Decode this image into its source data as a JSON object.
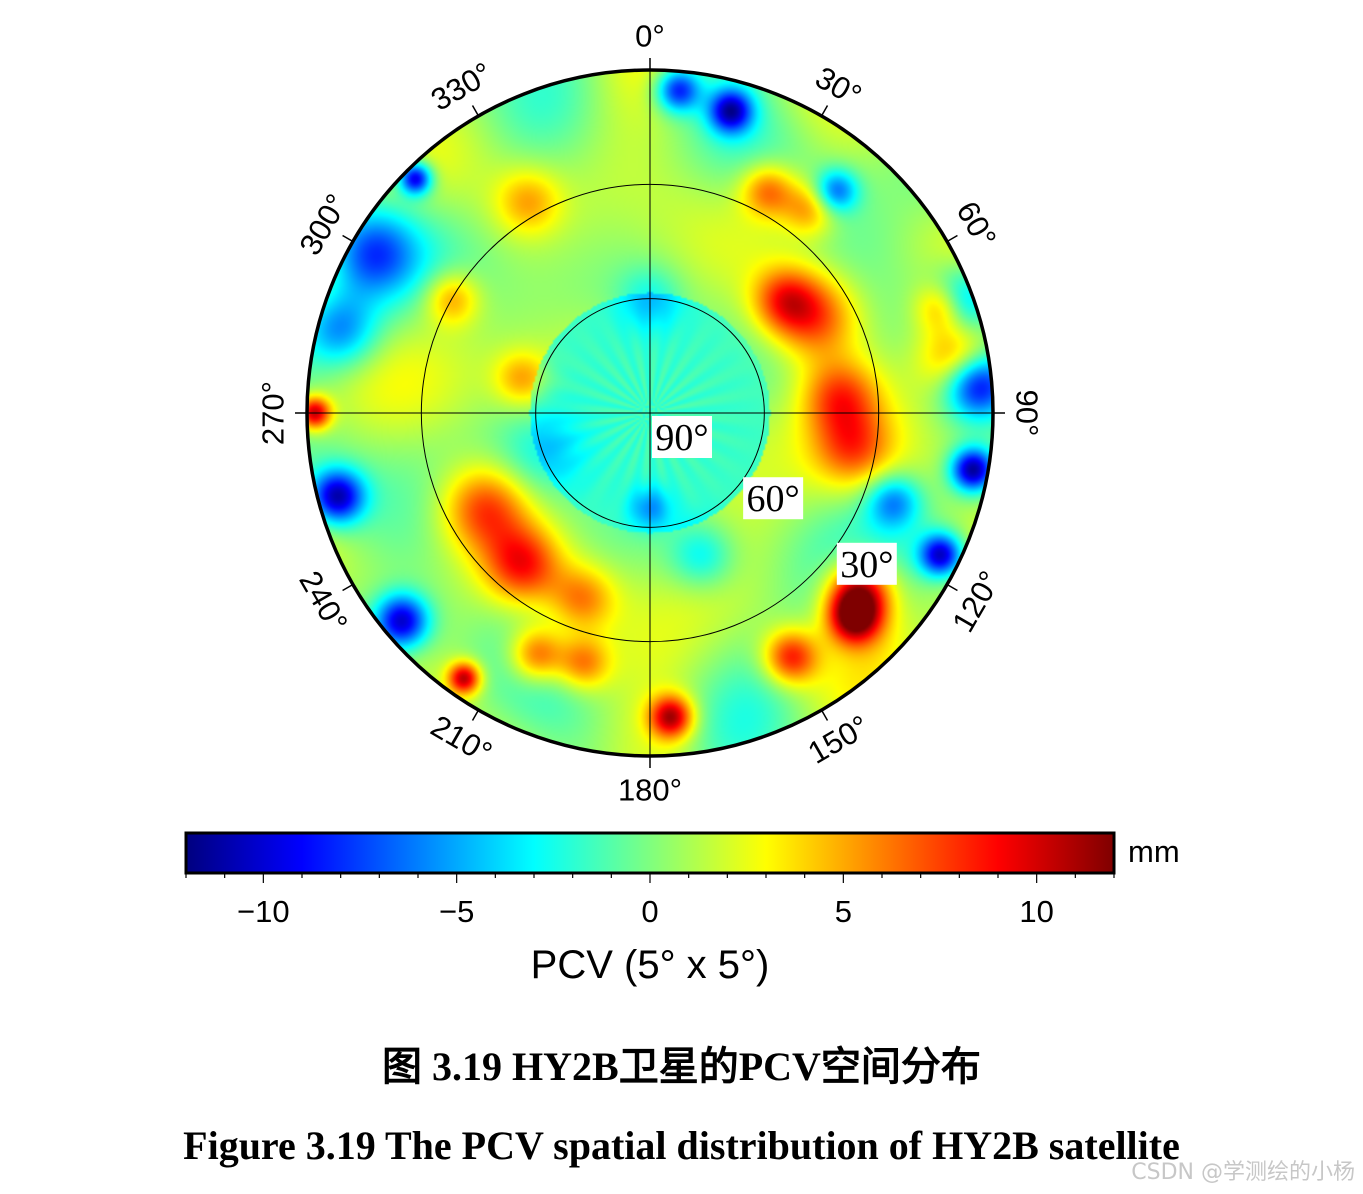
{
  "chart_data": {
    "type": "heatmap",
    "projection": "polar",
    "angular_ticks": [
      "0°",
      "30°",
      "60°",
      "90°",
      "120°",
      "150°",
      "180°",
      "210°",
      "240°",
      "270°",
      "300°",
      "330°"
    ],
    "radial_labels": [
      "90°",
      "60°",
      "30°"
    ],
    "radial_elevations": [
      90,
      60,
      30
    ],
    "elevation_range": [
      0,
      90
    ],
    "grid": true,
    "colorbar": {
      "min": -12,
      "max": 12,
      "ticks": [
        -10,
        -5,
        0,
        5,
        10
      ],
      "tick_labels": [
        "−10",
        "−5",
        "0",
        "5",
        "10"
      ],
      "unit": "mm",
      "label": "PCV (5° x 5°)",
      "colormap": [
        "#00007f",
        "#0000ff",
        "#007fff",
        "#00ffff",
        "#7fff7f",
        "#ffff00",
        "#ff7f00",
        "#ff0000",
        "#7f0000"
      ]
    },
    "features": [
      {
        "azimuth": 80,
        "elevation": 8,
        "value": 7,
        "spread": 7
      },
      {
        "azimuth": 70,
        "elevation": 8,
        "value": 8,
        "spread": 5
      },
      {
        "azimuth": 85,
        "elevation": 4,
        "value": -10,
        "spread": 6
      },
      {
        "azimuth": 70,
        "elevation": 4,
        "value": -9,
        "spread": 6
      },
      {
        "azimuth": 100,
        "elevation": 4,
        "value": -12,
        "spread": 4
      },
      {
        "azimuth": 116,
        "elevation": 5,
        "value": -11,
        "spread": 4
      },
      {
        "azimuth": 135,
        "elevation": 14,
        "value": 11,
        "spread": 5
      },
      {
        "azimuth": 130,
        "elevation": 18,
        "value": 10,
        "spread": 6
      },
      {
        "azimuth": 150,
        "elevation": 16,
        "value": 8,
        "spread": 5
      },
      {
        "azimuth": 176,
        "elevation": 10,
        "value": 10,
        "spread": 4
      },
      {
        "azimuth": 60,
        "elevation": 40,
        "value": 7,
        "spread": 8
      },
      {
        "azimuth": 50,
        "elevation": 44,
        "value": 6,
        "spread": 6
      },
      {
        "azimuth": 85,
        "elevation": 40,
        "value": 6,
        "spread": 7
      },
      {
        "azimuth": 100,
        "elevation": 36,
        "value": 5,
        "spread": 7
      },
      {
        "azimuth": 28,
        "elevation": 24,
        "value": 6,
        "spread": 5
      },
      {
        "azimuth": 38,
        "elevation": 22,
        "value": 5,
        "spread": 5
      },
      {
        "azimuth": 240,
        "elevation": 40,
        "value": 7,
        "spread": 8
      },
      {
        "azimuth": 220,
        "elevation": 38,
        "value": 7,
        "spread": 7
      },
      {
        "azimuth": 200,
        "elevation": 38,
        "value": 5,
        "spread": 6
      },
      {
        "azimuth": 205,
        "elevation": 20,
        "value": 7,
        "spread": 5
      },
      {
        "azimuth": 195,
        "elevation": 22,
        "value": 6,
        "spread": 5
      },
      {
        "azimuth": 215,
        "elevation": 5,
        "value": 10,
        "spread": 3
      },
      {
        "azimuth": 5,
        "elevation": 5,
        "value": -9,
        "spread": 4
      },
      {
        "azimuth": 15,
        "elevation": 8,
        "value": -10,
        "spread": 4
      },
      {
        "azimuth": 40,
        "elevation": 14,
        "value": -7,
        "spread": 4
      },
      {
        "azimuth": 270,
        "elevation": 2,
        "value": 10,
        "spread": 3
      },
      {
        "azimuth": 255,
        "elevation": 5,
        "value": -11,
        "spread": 5
      },
      {
        "azimuth": 230,
        "elevation": 5,
        "value": -11,
        "spread": 5
      },
      {
        "azimuth": 300,
        "elevation": 6,
        "value": -7,
        "spread": 8
      },
      {
        "azimuth": 285,
        "elevation": 6,
        "value": -6,
        "spread": 7
      },
      {
        "azimuth": 315,
        "elevation": 3,
        "value": -11,
        "spread": 3
      },
      {
        "azimuth": 330,
        "elevation": 26,
        "value": 4,
        "spread": 6
      },
      {
        "azimuth": 300,
        "elevation": 30,
        "value": 5,
        "spread": 5
      },
      {
        "azimuth": 285,
        "elevation": 55,
        "value": 4,
        "spread": 5
      },
      {
        "azimuth": 160,
        "elevation": 50,
        "value": -4,
        "spread": 6
      },
      {
        "azimuth": 250,
        "elevation": 60,
        "value": -3,
        "spread": 8
      },
      {
        "azimuth": 110,
        "elevation": 22,
        "value": -6,
        "spread": 5
      },
      {
        "azimuth": 180,
        "elevation": 65,
        "value": -4,
        "spread": 4
      },
      {
        "azimuth": 0,
        "elevation": 60,
        "value": -3,
        "spread": 6
      }
    ]
  },
  "captions": {
    "chinese": "图 3.19 HY2B卫星的PCV空间分布",
    "english": "Figure 3.19 The PCV spatial distribution of HY2B satellite"
  },
  "watermark": "CSDN @学测绘的小杨"
}
